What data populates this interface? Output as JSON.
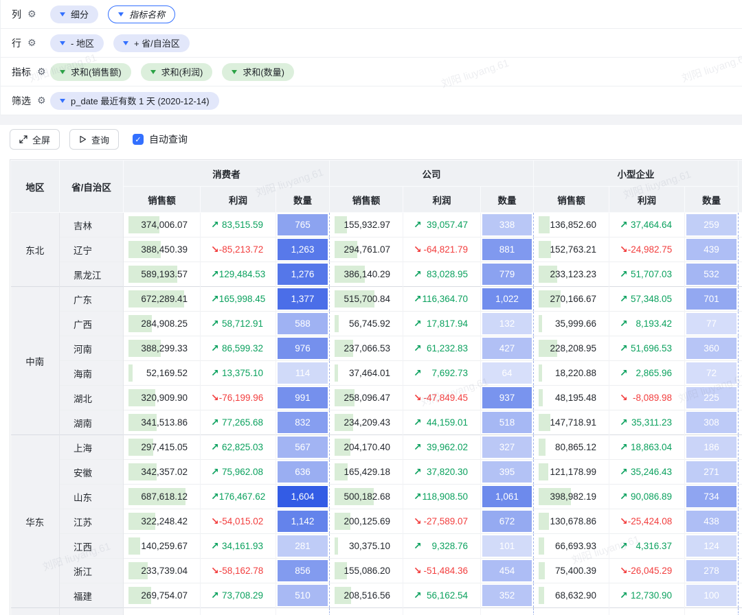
{
  "watermark": "刘阳 liuyang.61",
  "config_panel": {
    "rows": [
      {
        "id": "columns",
        "label": "列",
        "pills": [
          {
            "text": "细分",
            "style": "blue"
          },
          {
            "text": "指标名称",
            "style": "outline"
          }
        ]
      },
      {
        "id": "rows",
        "label": "行",
        "pills": [
          {
            "text": "- 地区",
            "style": "blue"
          },
          {
            "text": "+ 省/自治区",
            "style": "blue"
          }
        ]
      },
      {
        "id": "metrics",
        "label": "指标",
        "pills": [
          {
            "text": "求和(销售额)",
            "style": "green"
          },
          {
            "text": "求和(利润)",
            "style": "green"
          },
          {
            "text": "求和(数量)",
            "style": "green"
          }
        ]
      },
      {
        "id": "filters",
        "label": "筛选",
        "pills": [
          {
            "text": "p_date 最近有数 1 天 (2020-12-14)",
            "style": "blue"
          }
        ]
      }
    ]
  },
  "toolbar": {
    "fullscreen_label": "全屏",
    "query_label": "查询",
    "auto_query_label": "自动查询",
    "auto_query_checked": true,
    "checkmark": "✓"
  },
  "colors": {
    "accent_blue": "#3370ff",
    "profit_up_green": "#0ba15e",
    "profit_down_red": "#f23d3d",
    "heat_base_rgb": "43,85,228",
    "sales_bar_green": "#d9edd7"
  },
  "table": {
    "corner_headers": [
      "地区",
      "省/自治区"
    ],
    "groups": [
      "消费者",
      "公司",
      "小型企业"
    ],
    "metrics": [
      "销售额",
      "利润",
      "数量"
    ],
    "arrow_up": "↗",
    "arrow_down": "↘",
    "regions": [
      {
        "name": "东北",
        "provinces": [
          {
            "name": "吉林",
            "groups": [
              [
                "374,006.07",
                "83,515.59",
                "765"
              ],
              [
                "155,932.97",
                "39,057.47",
                "338"
              ],
              [
                "136,852.60",
                "37,464.64",
                "259"
              ]
            ]
          },
          {
            "name": "辽宁",
            "groups": [
              [
                "388,450.39",
                "-85,213.72",
                "1,263"
              ],
              [
                "294,761.07",
                "-64,821.79",
                "881"
              ],
              [
                "152,763.21",
                "-24,982.75",
                "439"
              ]
            ]
          },
          {
            "name": "黑龙江",
            "groups": [
              [
                "589,193.57",
                "129,484.53",
                "1,276"
              ],
              [
                "386,140.29",
                "83,028.95",
                "779"
              ],
              [
                "233,123.23",
                "51,707.03",
                "532"
              ]
            ]
          }
        ]
      },
      {
        "name": "中南",
        "provinces": [
          {
            "name": "广东",
            "groups": [
              [
                "672,289.41",
                "165,998.45",
                "1,377"
              ],
              [
                "515,700.84",
                "116,364.70",
                "1,022"
              ],
              [
                "270,166.67",
                "57,348.05",
                "701"
              ]
            ]
          },
          {
            "name": "广西",
            "groups": [
              [
                "284,908.25",
                "58,712.91",
                "588"
              ],
              [
                "56,745.92",
                "17,817.94",
                "132"
              ],
              [
                "35,999.66",
                "8,193.42",
                "77"
              ]
            ]
          },
          {
            "name": "河南",
            "groups": [
              [
                "388,299.33",
                "86,599.32",
                "976"
              ],
              [
                "237,066.53",
                "61,232.83",
                "427"
              ],
              [
                "228,208.95",
                "51,696.53",
                "360"
              ]
            ]
          },
          {
            "name": "海南",
            "groups": [
              [
                "52,169.52",
                "13,375.10",
                "114"
              ],
              [
                "37,464.01",
                "7,692.73",
                "64"
              ],
              [
                "18,220.88",
                "2,865.96",
                "72"
              ]
            ]
          },
          {
            "name": "湖北",
            "groups": [
              [
                "320,909.90",
                "-76,199.96",
                "991"
              ],
              [
                "258,096.47",
                "-47,849.45",
                "937"
              ],
              [
                "48,195.48",
                "-8,089.98",
                "225"
              ]
            ]
          },
          {
            "name": "湖南",
            "groups": [
              [
                "341,513.86",
                "77,265.68",
                "832"
              ],
              [
                "234,209.43",
                "44,159.01",
                "518"
              ],
              [
                "147,718.91",
                "35,311.23",
                "308"
              ]
            ]
          }
        ]
      },
      {
        "name": "华东",
        "provinces": [
          {
            "name": "上海",
            "groups": [
              [
                "297,415.05",
                "62,825.03",
                "567"
              ],
              [
                "204,170.40",
                "39,962.02",
                "327"
              ],
              [
                "80,865.12",
                "18,863.04",
                "186"
              ]
            ]
          },
          {
            "name": "安徽",
            "groups": [
              [
                "342,357.02",
                "75,962.08",
                "636"
              ],
              [
                "165,429.18",
                "37,820.30",
                "395"
              ],
              [
                "121,178.99",
                "35,246.43",
                "271"
              ]
            ]
          },
          {
            "name": "山东",
            "groups": [
              [
                "687,618.12",
                "176,467.62",
                "1,604"
              ],
              [
                "500,182.68",
                "118,908.50",
                "1,061"
              ],
              [
                "398,982.19",
                "90,086.89",
                "734"
              ]
            ]
          },
          {
            "name": "江苏",
            "groups": [
              [
                "322,248.42",
                "-54,015.02",
                "1,142"
              ],
              [
                "200,125.69",
                "-27,589.07",
                "672"
              ],
              [
                "130,678.86",
                "-25,424.08",
                "438"
              ]
            ]
          },
          {
            "name": "江西",
            "groups": [
              [
                "140,259.67",
                "34,161.93",
                "281"
              ],
              [
                "30,375.10",
                "9,328.76",
                "101"
              ],
              [
                "66,693.93",
                "4,316.37",
                "124"
              ]
            ]
          },
          {
            "name": "浙江",
            "groups": [
              [
                "233,739.04",
                "-58,162.78",
                "856"
              ],
              [
                "155,086.20",
                "-51,484.36",
                "454"
              ],
              [
                "75,400.39",
                "-26,045.29",
                "278"
              ]
            ]
          },
          {
            "name": "福建",
            "groups": [
              [
                "269,754.07",
                "73,708.29",
                "510"
              ],
              [
                "208,516.56",
                "56,162.54",
                "352"
              ],
              [
                "68,632.90",
                "12,730.90",
                "100"
              ]
            ]
          }
        ]
      }
    ]
  }
}
